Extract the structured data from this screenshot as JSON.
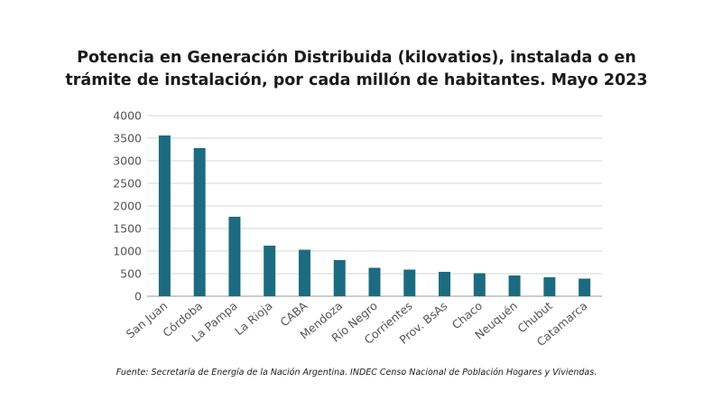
{
  "chart_data": {
    "type": "bar",
    "title_line1": "Potencia en Generación Distribuida (kilovatios), instalada o en",
    "title_line2": "trámite de instalación, por cada millón de habitantes. Mayo 2023",
    "categories": [
      "San Juan",
      "Córdoba",
      "La Pampa",
      "La Rioja",
      "CABA",
      "Mendoza",
      "Río Negro",
      "Corrientes",
      "Prov. BsAs",
      "Chaco",
      "Neuquén",
      "Chubut",
      "Catamarca"
    ],
    "values": [
      3560,
      3280,
      1760,
      1120,
      1030,
      800,
      630,
      590,
      540,
      510,
      460,
      420,
      390
    ],
    "ylim": [
      0,
      4000
    ],
    "yticks": [
      0,
      500,
      1000,
      1500,
      2000,
      2500,
      3000,
      3500,
      4000
    ],
    "grid": true,
    "bar_color": "#1d6b80",
    "xlabel": "",
    "ylabel": ""
  },
  "source": "Fuente: Secretaría de Energía de la Nación Argentina. INDEC Censo Nacional de Población Hogares y Viviendas."
}
